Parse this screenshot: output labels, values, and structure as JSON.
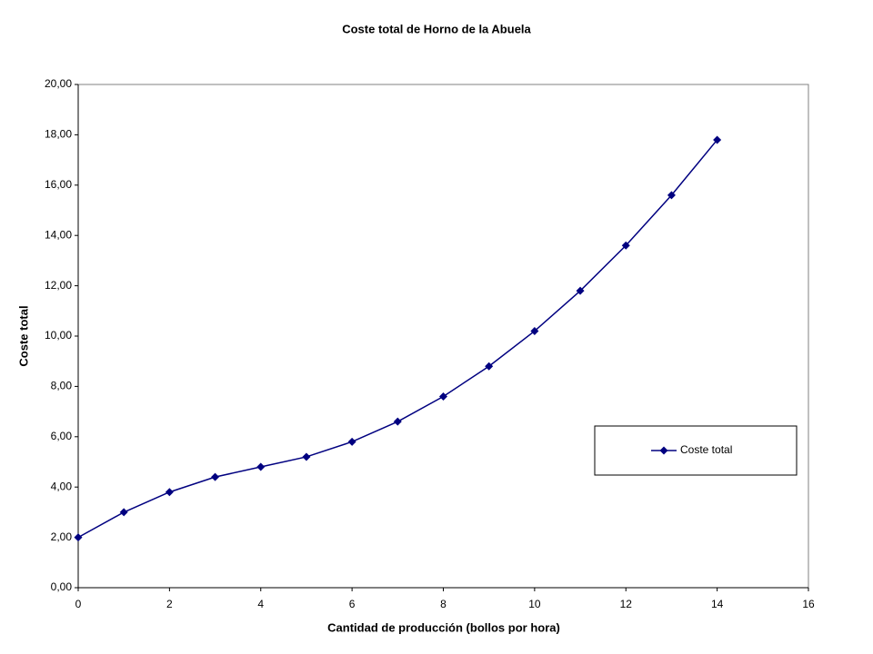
{
  "chart_data": {
    "type": "line",
    "title": "Coste total de Horno de la Abuela",
    "x_label": "Cantidad de producción (bollos por hora)",
    "y_label": "Coste total",
    "x": [
      0,
      1,
      2,
      3,
      4,
      5,
      6,
      7,
      8,
      9,
      10,
      11,
      12,
      13,
      14
    ],
    "series": [
      {
        "name": "Coste total",
        "color": "#000080",
        "values": [
          2,
          3,
          3.8,
          4.4,
          4.8,
          5.2,
          5.8,
          6.6,
          7.6,
          8.8,
          10.2,
          11.8,
          13.6,
          15.6,
          17.8
        ]
      }
    ],
    "xlim": [
      0,
      16
    ],
    "xticks": [
      0,
      2,
      4,
      6,
      8,
      10,
      12,
      14,
      16
    ],
    "ylim": [
      0,
      20
    ],
    "yticks": [
      {
        "value": 0,
        "label": "0,00"
      },
      {
        "value": 2,
        "label": "2,00"
      },
      {
        "value": 4,
        "label": "4,00"
      },
      {
        "value": 6,
        "label": "6,00"
      },
      {
        "value": 8,
        "label": "8,00"
      },
      {
        "value": 10,
        "label": "10,00"
      },
      {
        "value": 12,
        "label": "12,00"
      },
      {
        "value": 14,
        "label": "14,00"
      },
      {
        "value": 16,
        "label": "16,00"
      },
      {
        "value": 18,
        "label": "18,00"
      },
      {
        "value": 20,
        "label": "20,00"
      }
    ],
    "grid": false,
    "legend": "right"
  }
}
